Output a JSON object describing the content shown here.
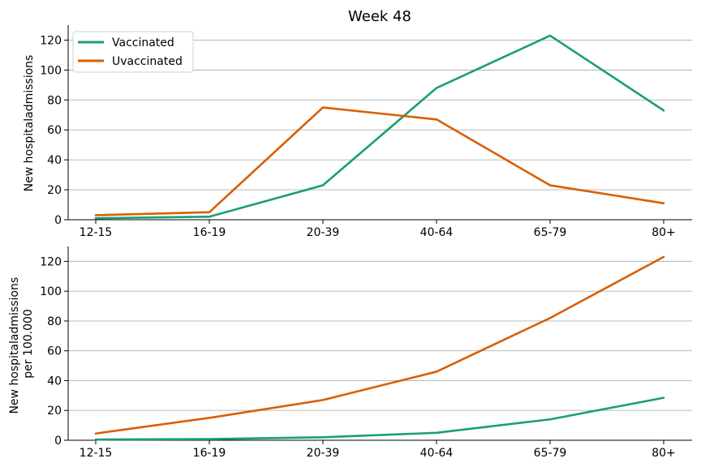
{
  "chart_data": [
    {
      "type": "line",
      "title": "Week 48",
      "xlabel": "",
      "ylabel": "New hospitaladmissions",
      "categories": [
        "12-15",
        "16-19",
        "20-39",
        "40-64",
        "65-79",
        "80+"
      ],
      "ylim": [
        0,
        130
      ],
      "yticks": [
        0,
        20,
        40,
        60,
        80,
        100,
        120
      ],
      "grid": "horizontal",
      "legend": "top-left",
      "series": [
        {
          "name": "Vaccinated",
          "color": "#1b9e77",
          "values": [
            1,
            2,
            23,
            88,
            123,
            73
          ]
        },
        {
          "name": "Uvaccinated",
          "color": "#d95f02",
          "values": [
            3,
            5,
            75,
            67,
            23,
            11
          ]
        }
      ]
    },
    {
      "type": "line",
      "title": "",
      "xlabel": "",
      "ylabel": "New hospitaladmissions per 100.000",
      "ylabel_lines": [
        "New hospitaladmissions",
        "per 100.000"
      ],
      "categories": [
        "12-15",
        "16-19",
        "20-39",
        "40-64",
        "65-79",
        "80+"
      ],
      "ylim": [
        0,
        130
      ],
      "yticks": [
        0,
        20,
        40,
        60,
        80,
        100,
        120
      ],
      "grid": "horizontal",
      "series": [
        {
          "color": "#1b9e77",
          "values": [
            0.5,
            0.8,
            2,
            5,
            14,
            28.5
          ]
        },
        {
          "color": "#d95f02",
          "values": [
            4.5,
            15,
            27,
            46,
            82,
            123
          ]
        }
      ]
    }
  ]
}
